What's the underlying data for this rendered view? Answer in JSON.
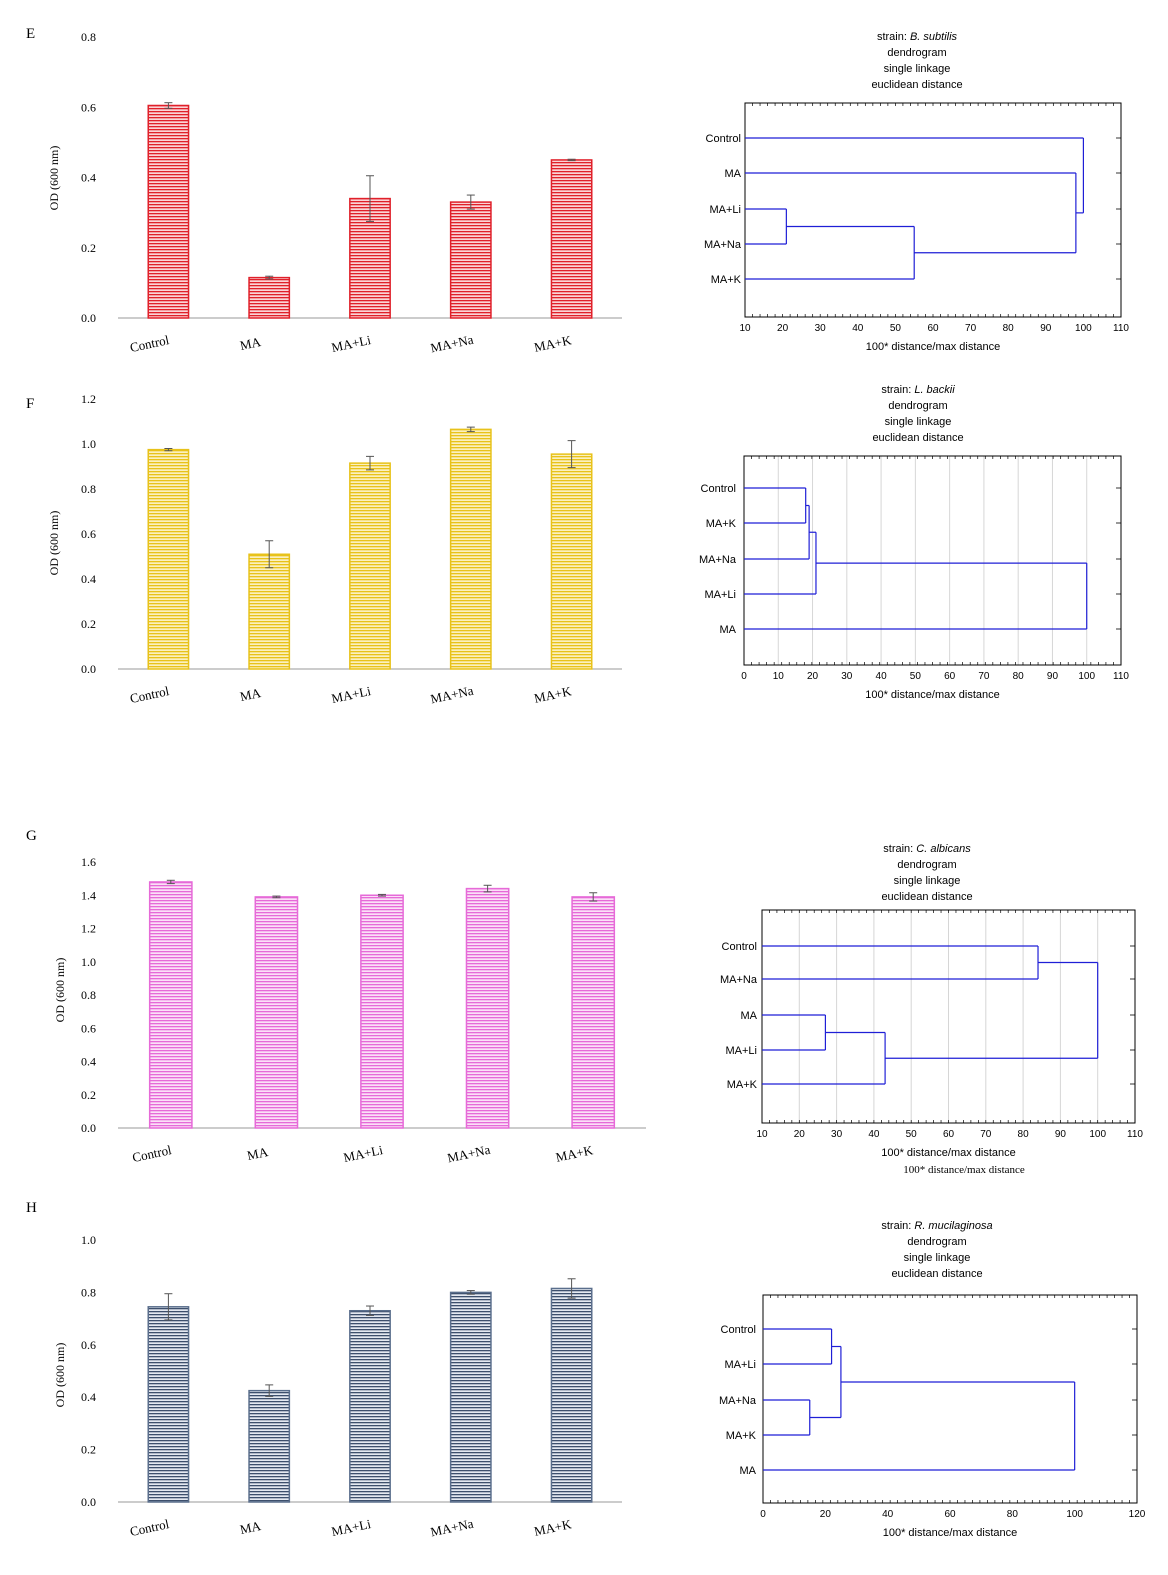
{
  "panels": [
    {
      "label": "E",
      "bar": {
        "type": "bar",
        "ylabel": "OD (600 nm)",
        "yticks": [
          "0.0",
          "0.2",
          "0.4",
          "0.6",
          "0.8"
        ],
        "ylim": [
          0,
          0.8
        ],
        "categories": [
          "Control",
          "MA",
          "MA+Li",
          "MA+Na",
          "MA+K"
        ],
        "values": [
          0.605,
          0.115,
          0.34,
          0.33,
          0.45
        ],
        "errors": [
          0.008,
          0.004,
          0.065,
          0.02,
          0.002
        ],
        "color": "#e0202a"
      },
      "dendrogram": {
        "type": "dendrogram",
        "title_prefix": "strain: ",
        "strain": "B. subtilis",
        "title_lines": [
          "dendrogram",
          "single linkage",
          "euclidean distance"
        ],
        "xlabel": "100* distance/max distance",
        "xlim": [
          10,
          110
        ],
        "xticks": [
          "10",
          "20",
          "30",
          "40",
          "50",
          "60",
          "70",
          "80",
          "90",
          "100",
          "110"
        ],
        "leaves": [
          "Control",
          "MA",
          "MA+Li",
          "MA+Na",
          "MA+K"
        ],
        "merges": [
          [
            "MA+Li",
            "MA+Na",
            21
          ],
          [
            "MA+Li|MA+Na",
            "MA+K",
            55
          ],
          [
            "MA",
            "MA+Li|MA+Na|MA+K",
            98
          ],
          [
            "Control",
            "MA|MA+Li|MA+Na|MA+K",
            100
          ]
        ],
        "grid": false
      }
    },
    {
      "label": "F",
      "bar": {
        "type": "bar",
        "ylabel": "OD (600 nm)",
        "yticks": [
          "0.0",
          "0.2",
          "0.4",
          "0.6",
          "0.8",
          "1.0",
          "1.2"
        ],
        "ylim": [
          0,
          1.2
        ],
        "categories": [
          "Control",
          "MA",
          "MA+Li",
          "MA+Na",
          "MA+K"
        ],
        "values": [
          0.975,
          0.51,
          0.915,
          1.065,
          0.955
        ],
        "errors": [
          0.005,
          0.06,
          0.03,
          0.01,
          0.06
        ],
        "color": "#e8c21a"
      },
      "dendrogram": {
        "type": "dendrogram",
        "title_prefix": "strain: ",
        "strain": "L. backii",
        "title_lines": [
          "dendrogram",
          "single linkage",
          "euclidean distance"
        ],
        "xlabel": "100* distance/max distance",
        "xlim": [
          0,
          110
        ],
        "xticks": [
          "0",
          "10",
          "20",
          "30",
          "40",
          "50",
          "60",
          "70",
          "80",
          "90",
          "100",
          "110"
        ],
        "leaves": [
          "Control",
          "MA+K",
          "MA+Na",
          "MA+Li",
          "MA"
        ],
        "merges": [
          [
            "Control",
            "MA+K",
            18
          ],
          [
            "Control|MA+K",
            "MA+Na",
            19
          ],
          [
            "Control|MA+K|MA+Na",
            "MA+Li",
            21
          ],
          [
            "Control|MA+K|MA+Na|MA+Li",
            "MA",
            100
          ]
        ],
        "grid": true
      }
    },
    {
      "label": "G",
      "bar": {
        "type": "bar",
        "ylabel": "OD (600 nm)",
        "yticks": [
          "0.0",
          "0.2",
          "0.4",
          "0.6",
          "0.8",
          "1.0",
          "1.2",
          "1.4",
          "1.6"
        ],
        "ylim": [
          0,
          1.6
        ],
        "categories": [
          "Control",
          "MA",
          "MA+Li",
          "MA+Na",
          "MA+K"
        ],
        "values": [
          1.48,
          1.39,
          1.4,
          1.44,
          1.39
        ],
        "errors": [
          0.01,
          0.005,
          0.005,
          0.02,
          0.025
        ],
        "color": "#e66ad8"
      },
      "dendrogram": {
        "type": "dendrogram",
        "title_prefix": "strain: ",
        "strain": "C. albicans",
        "title_lines": [
          "dendrogram",
          "single linkage",
          "euclidean distance"
        ],
        "xlabel": "100* distance/max distance",
        "xlabel2": "100* distance/max distance",
        "xlim": [
          10,
          110
        ],
        "xticks": [
          "10",
          "20",
          "30",
          "40",
          "50",
          "60",
          "70",
          "80",
          "90",
          "100",
          "110"
        ],
        "leaves": [
          "Control",
          "MA+Na",
          "MA",
          "MA+Li",
          "MA+K"
        ],
        "merges": [
          [
            "MA",
            "MA+Li",
            27
          ],
          [
            "MA|MA+Li",
            "MA+K",
            43
          ],
          [
            "Control",
            "MA+Na",
            84
          ],
          [
            "Control|MA+Na",
            "MA|MA+Li|MA+K",
            100
          ]
        ],
        "grid": true
      }
    },
    {
      "label": "H",
      "bar": {
        "type": "bar",
        "ylabel": "OD (600 nm)",
        "yticks": [
          "0.0",
          "0.2",
          "0.4",
          "0.6",
          "0.8",
          "1.0"
        ],
        "ylim": [
          0,
          1.0
        ],
        "categories": [
          "Control",
          "MA",
          "MA+Li",
          "MA+Na",
          "MA+K"
        ],
        "values": [
          0.745,
          0.425,
          0.73,
          0.8,
          0.815
        ],
        "errors": [
          0.05,
          0.022,
          0.018,
          0.007,
          0.037
        ],
        "color": "#5a6e8c"
      },
      "dendrogram": {
        "type": "dendrogram",
        "title_prefix": "strain: ",
        "strain": "R. mucilaginosa",
        "title_lines": [
          "dendrogram",
          "single linkage",
          "euclidean distance"
        ],
        "xlabel": "100* distance/max distance",
        "xlim": [
          0,
          120
        ],
        "xticks": [
          "0",
          "20",
          "40",
          "60",
          "80",
          "100",
          "120"
        ],
        "leaves": [
          "Control",
          "MA+Li",
          "MA+Na",
          "MA+K",
          "MA"
        ],
        "merges": [
          [
            "MA+Na",
            "MA+K",
            15
          ],
          [
            "Control",
            "MA+Li",
            22
          ],
          [
            "Control|MA+Li",
            "MA+Na|MA+K",
            25
          ],
          [
            "Control|MA+Li|MA+Na|MA+K",
            "MA",
            100
          ]
        ],
        "grid": false
      }
    }
  ]
}
